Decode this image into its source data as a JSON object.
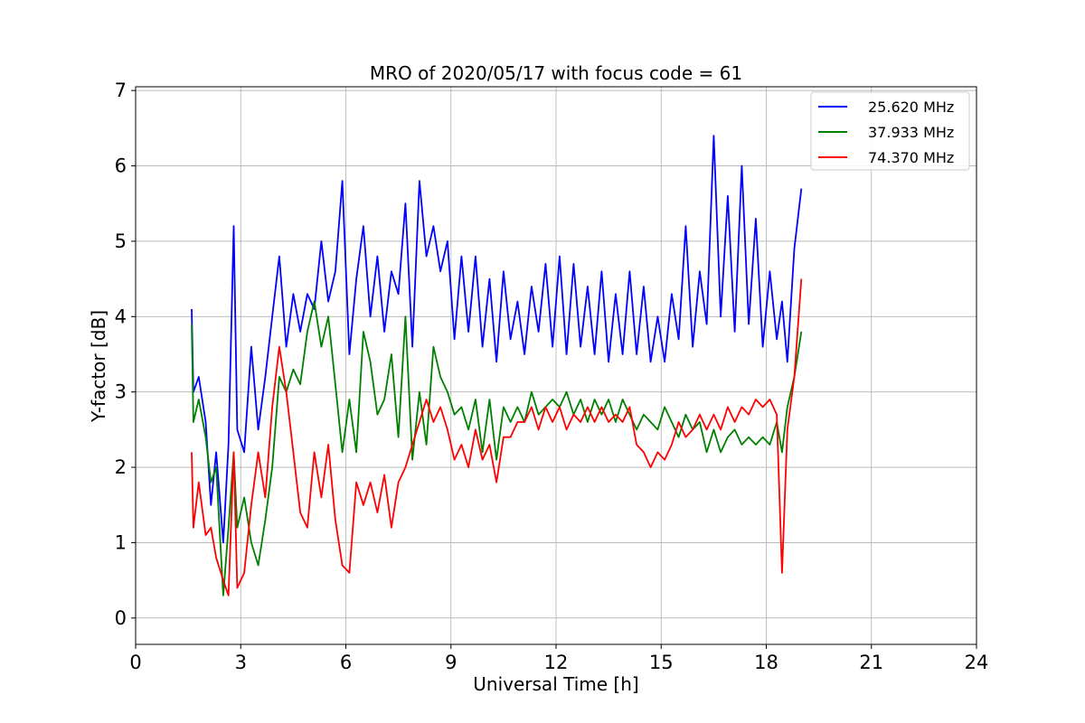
{
  "chart_data": {
    "type": "line",
    "title": "MRO of 2020/05/17 with focus code = 61",
    "xlabel": "Universal Time [h]",
    "ylabel": "Y-factor [dB]",
    "xlim": [
      0,
      24
    ],
    "ylim": [
      -0.35,
      7.05
    ],
    "x_ticks": [
      0,
      3,
      6,
      9,
      12,
      15,
      18,
      21,
      24
    ],
    "y_ticks": [
      0,
      1,
      2,
      3,
      4,
      5,
      6,
      7
    ],
    "grid": true,
    "legend_position": "top-right",
    "series": [
      {
        "name": "25.620 MHz",
        "color": "#0000ff",
        "x": [
          1.6,
          1.65,
          1.8,
          2.0,
          2.15,
          2.3,
          2.5,
          2.65,
          2.8,
          2.9,
          3.1,
          3.3,
          3.5,
          3.7,
          3.9,
          4.1,
          4.3,
          4.5,
          4.7,
          4.9,
          5.1,
          5.3,
          5.5,
          5.7,
          5.9,
          6.1,
          6.3,
          6.5,
          6.7,
          6.9,
          7.1,
          7.3,
          7.5,
          7.7,
          7.9,
          8.1,
          8.3,
          8.5,
          8.7,
          8.9,
          9.1,
          9.3,
          9.5,
          9.7,
          9.9,
          10.1,
          10.3,
          10.5,
          10.7,
          10.9,
          11.1,
          11.3,
          11.5,
          11.7,
          11.9,
          12.1,
          12.3,
          12.5,
          12.7,
          12.9,
          13.1,
          13.3,
          13.5,
          13.7,
          13.9,
          14.1,
          14.3,
          14.5,
          14.7,
          14.9,
          15.1,
          15.3,
          15.5,
          15.7,
          15.9,
          16.1,
          16.3,
          16.5,
          16.7,
          16.9,
          17.1,
          17.3,
          17.5,
          17.7,
          17.9,
          18.1,
          18.3,
          18.45,
          18.6,
          18.8,
          19.0
        ],
        "y": [
          4.1,
          3.0,
          3.2,
          2.6,
          1.5,
          2.2,
          1.0,
          2.3,
          5.2,
          2.5,
          2.2,
          3.6,
          2.5,
          3.2,
          4.0,
          4.8,
          3.6,
          4.3,
          3.8,
          4.3,
          4.1,
          5.0,
          4.2,
          4.6,
          5.8,
          3.5,
          4.5,
          5.2,
          4.0,
          4.8,
          3.8,
          4.6,
          4.3,
          5.5,
          3.6,
          5.8,
          4.8,
          5.2,
          4.6,
          5.0,
          3.7,
          4.8,
          3.8,
          4.8,
          3.6,
          4.5,
          3.4,
          4.6,
          3.7,
          4.2,
          3.5,
          4.4,
          3.8,
          4.7,
          3.6,
          4.8,
          3.5,
          4.7,
          3.6,
          4.4,
          3.5,
          4.6,
          3.4,
          4.3,
          3.5,
          4.6,
          3.5,
          4.4,
          3.4,
          4.0,
          3.4,
          4.3,
          3.7,
          5.2,
          3.6,
          4.6,
          3.9,
          6.4,
          4.0,
          5.6,
          3.8,
          6.0,
          3.9,
          5.3,
          3.6,
          4.6,
          3.7,
          4.2,
          3.4,
          4.9,
          5.7
        ]
      },
      {
        "name": "37.933 MHz",
        "color": "#008000",
        "x": [
          1.6,
          1.65,
          1.8,
          2.0,
          2.15,
          2.3,
          2.5,
          2.65,
          2.8,
          2.9,
          3.1,
          3.3,
          3.5,
          3.7,
          3.9,
          4.1,
          4.3,
          4.5,
          4.7,
          4.9,
          5.1,
          5.3,
          5.5,
          5.7,
          5.9,
          6.1,
          6.3,
          6.5,
          6.7,
          6.9,
          7.1,
          7.3,
          7.5,
          7.7,
          7.9,
          8.1,
          8.3,
          8.5,
          8.7,
          8.9,
          9.1,
          9.3,
          9.5,
          9.7,
          9.9,
          10.1,
          10.3,
          10.5,
          10.7,
          10.9,
          11.1,
          11.3,
          11.5,
          11.7,
          11.9,
          12.1,
          12.3,
          12.5,
          12.7,
          12.9,
          13.1,
          13.3,
          13.5,
          13.7,
          13.9,
          14.1,
          14.3,
          14.5,
          14.7,
          14.9,
          15.1,
          15.3,
          15.5,
          15.7,
          15.9,
          16.1,
          16.3,
          16.5,
          16.7,
          16.9,
          17.1,
          17.3,
          17.5,
          17.7,
          17.9,
          18.1,
          18.3,
          18.45,
          18.6,
          18.8,
          19.0
        ],
        "y": [
          3.9,
          2.6,
          2.9,
          2.4,
          1.8,
          2.0,
          0.3,
          1.2,
          2.2,
          1.2,
          1.6,
          1.0,
          0.7,
          1.3,
          2.0,
          3.2,
          3.0,
          3.3,
          3.1,
          3.8,
          4.2,
          3.6,
          4.0,
          3.1,
          2.2,
          2.9,
          2.2,
          3.8,
          3.4,
          2.7,
          2.9,
          3.5,
          2.4,
          4.0,
          2.1,
          3.0,
          2.3,
          3.6,
          3.2,
          3.0,
          2.7,
          2.8,
          2.5,
          2.9,
          2.2,
          2.9,
          2.1,
          2.8,
          2.6,
          2.8,
          2.6,
          3.0,
          2.7,
          2.8,
          2.9,
          2.8,
          3.0,
          2.7,
          2.9,
          2.6,
          2.9,
          2.7,
          2.9,
          2.6,
          2.9,
          2.7,
          2.5,
          2.7,
          2.6,
          2.5,
          2.8,
          2.6,
          2.4,
          2.7,
          2.5,
          2.6,
          2.2,
          2.5,
          2.2,
          2.4,
          2.5,
          2.3,
          2.4,
          2.3,
          2.4,
          2.3,
          2.6,
          2.2,
          2.8,
          3.2,
          3.8
        ]
      },
      {
        "name": "74.370 MHz",
        "color": "#ff0000",
        "x": [
          1.6,
          1.65,
          1.8,
          2.0,
          2.15,
          2.3,
          2.5,
          2.65,
          2.8,
          2.9,
          3.1,
          3.3,
          3.5,
          3.7,
          3.9,
          4.1,
          4.3,
          4.5,
          4.7,
          4.9,
          5.1,
          5.3,
          5.5,
          5.7,
          5.9,
          6.1,
          6.3,
          6.5,
          6.7,
          6.9,
          7.1,
          7.3,
          7.5,
          7.7,
          7.9,
          8.1,
          8.3,
          8.5,
          8.7,
          8.9,
          9.1,
          9.3,
          9.5,
          9.7,
          9.9,
          10.1,
          10.3,
          10.5,
          10.7,
          10.9,
          11.1,
          11.3,
          11.5,
          11.7,
          11.9,
          12.1,
          12.3,
          12.5,
          12.7,
          12.9,
          13.1,
          13.3,
          13.5,
          13.7,
          13.9,
          14.1,
          14.3,
          14.5,
          14.7,
          14.9,
          15.1,
          15.3,
          15.5,
          15.7,
          15.9,
          16.1,
          16.3,
          16.5,
          16.7,
          16.9,
          17.1,
          17.3,
          17.5,
          17.7,
          17.9,
          18.1,
          18.3,
          18.45,
          18.6,
          18.8,
          19.0
        ],
        "y": [
          2.2,
          1.2,
          1.8,
          1.1,
          1.2,
          0.8,
          0.5,
          0.3,
          2.2,
          0.4,
          0.6,
          1.5,
          2.2,
          1.6,
          2.8,
          3.6,
          3.0,
          2.2,
          1.4,
          1.2,
          2.2,
          1.6,
          2.3,
          1.3,
          0.7,
          0.6,
          1.8,
          1.5,
          1.8,
          1.4,
          1.9,
          1.2,
          1.8,
          2.0,
          2.3,
          2.6,
          2.9,
          2.6,
          2.8,
          2.5,
          2.1,
          2.3,
          2.0,
          2.5,
          2.1,
          2.3,
          1.8,
          2.4,
          2.4,
          2.6,
          2.6,
          2.8,
          2.5,
          2.8,
          2.6,
          2.8,
          2.5,
          2.7,
          2.6,
          2.8,
          2.6,
          2.8,
          2.6,
          2.7,
          2.6,
          2.8,
          2.3,
          2.2,
          2.0,
          2.2,
          2.1,
          2.3,
          2.6,
          2.4,
          2.5,
          2.7,
          2.5,
          2.7,
          2.5,
          2.8,
          2.6,
          2.8,
          2.7,
          2.9,
          2.8,
          2.9,
          2.7,
          0.6,
          2.5,
          3.2,
          4.5
        ]
      }
    ]
  }
}
